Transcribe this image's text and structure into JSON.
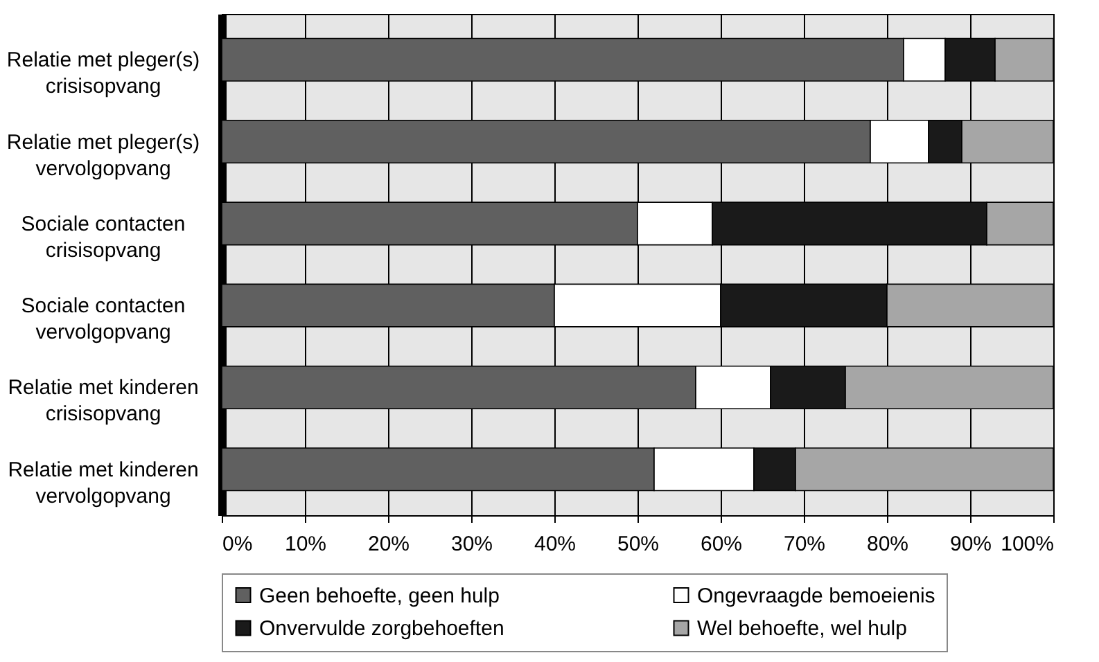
{
  "chart_data": {
    "type": "bar",
    "orientation": "horizontal",
    "stacked": true,
    "categories": [
      "Relatie met pleger(s) crisisopvang",
      "Relatie met pleger(s) vervolgopvang",
      "Sociale contacten crisisopvang",
      "Sociale contacten vervolgopvang",
      "Relatie met kinderen crisisopvang",
      "Relatie met kinderen vervolgopvang"
    ],
    "series": [
      {
        "name": "Geen behoefte, geen hulp",
        "color": "#606060",
        "values": [
          82,
          78,
          50,
          40,
          57,
          52
        ]
      },
      {
        "name": "Ongevraagde bemoeienis",
        "color": "#ffffff",
        "values": [
          5,
          7,
          9,
          20,
          9,
          12
        ]
      },
      {
        "name": "Onvervulde zorgbehoeften",
        "color": "#1a1a1a",
        "values": [
          6,
          4,
          33,
          20,
          9,
          5
        ]
      },
      {
        "name": "Wel behoefte, wel hulp",
        "color": "#a6a6a6",
        "values": [
          7,
          11,
          8,
          20,
          25,
          31
        ]
      }
    ],
    "xlim": [
      0,
      100
    ],
    "xticks": [
      {
        "value": 0,
        "label": "0%"
      },
      {
        "value": 10,
        "label": "10%"
      },
      {
        "value": 20,
        "label": "20%"
      },
      {
        "value": 30,
        "label": "30%"
      },
      {
        "value": 40,
        "label": "40%"
      },
      {
        "value": 50,
        "label": "50%"
      },
      {
        "value": 60,
        "label": "60%"
      },
      {
        "value": 70,
        "label": "70%"
      },
      {
        "value": 80,
        "label": "80%"
      },
      {
        "value": 90,
        "label": "90%"
      },
      {
        "value": 100,
        "label": "100%"
      }
    ],
    "grid": "x",
    "legend": "bottom"
  }
}
